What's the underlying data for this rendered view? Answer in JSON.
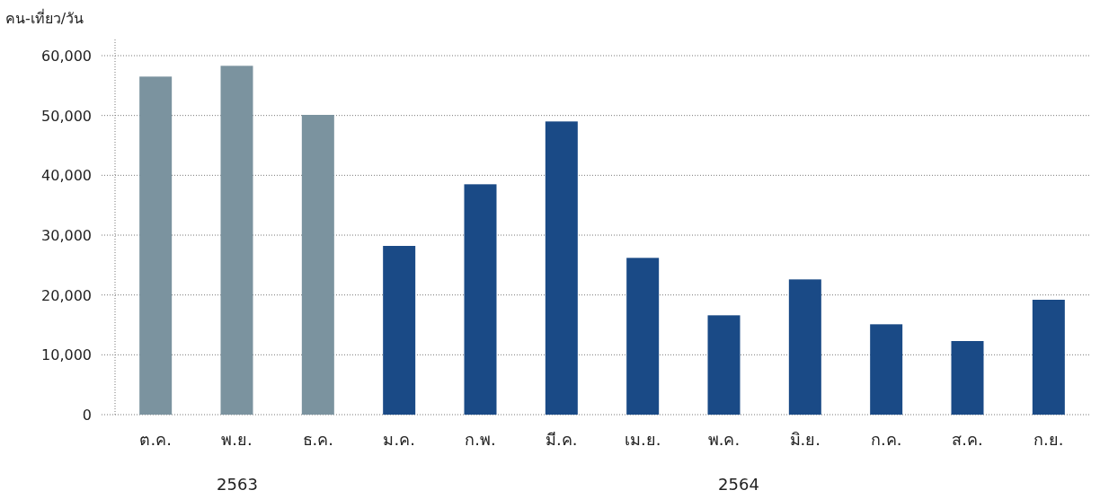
{
  "chart_data": {
    "type": "bar",
    "ylabel": "คน-เที่ยว/วัน",
    "categories": [
      "ต.ค.",
      "พ.ย.",
      "ธ.ค.",
      "ม.ค.",
      "ก.พ.",
      "มี.ค.",
      "เม.ย.",
      "พ.ค.",
      "มิ.ย.",
      "ก.ค.",
      "ส.ค.",
      "ก.ย."
    ],
    "values": [
      56500,
      58300,
      50100,
      28200,
      38500,
      49000,
      26200,
      16600,
      22600,
      15100,
      12300,
      19200
    ],
    "colors": [
      "#7b939f",
      "#7b939f",
      "#7b939f",
      "#1a4a86",
      "#1a4a86",
      "#1a4a86",
      "#1a4a86",
      "#1a4a86",
      "#1a4a86",
      "#1a4a86",
      "#1a4a86",
      "#1a4a86"
    ],
    "ylim": [
      0,
      60000
    ],
    "yticks": [
      {
        "value": 0,
        "label": "0"
      },
      {
        "value": 10000,
        "label": "10,000"
      },
      {
        "value": 20000,
        "label": "20,000"
      },
      {
        "value": 30000,
        "label": "30,000"
      },
      {
        "value": 40000,
        "label": "40,000"
      },
      {
        "value": 50000,
        "label": "50,000"
      },
      {
        "value": 60000,
        "label": "60,000"
      }
    ],
    "grid": "y",
    "annotations": [
      "2563",
      "2564"
    ]
  }
}
